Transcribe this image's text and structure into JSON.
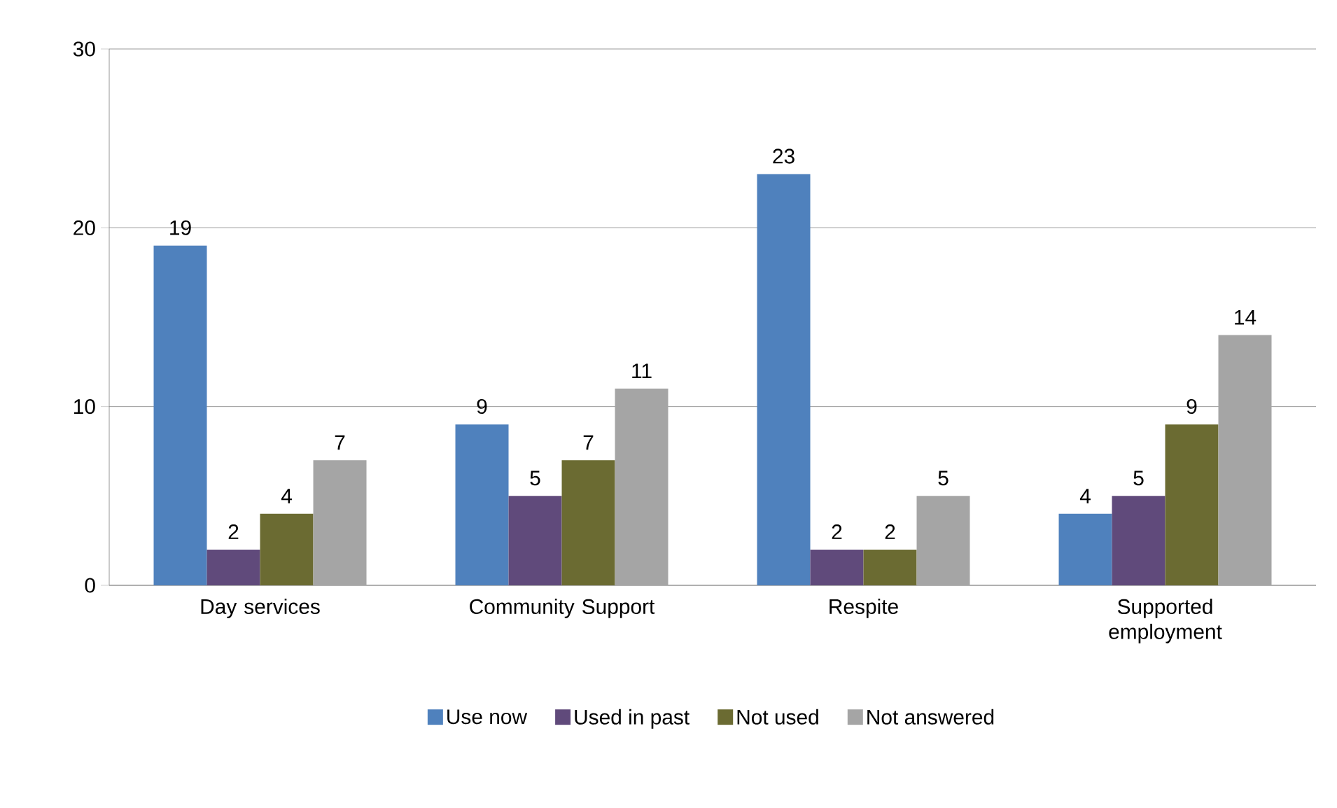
{
  "chart_data": {
    "type": "bar",
    "categories": [
      "Day services",
      "Community Support",
      "Respite",
      "Supported employment"
    ],
    "series": [
      {
        "name": "Use now",
        "color": "#4f81bd",
        "values": [
          19,
          9,
          23,
          4
        ]
      },
      {
        "name": "Used in past",
        "color": "#604a7b",
        "values": [
          2,
          5,
          2,
          5
        ]
      },
      {
        "name": "Not used",
        "color": "#6b6b32",
        "values": [
          4,
          7,
          2,
          9
        ]
      },
      {
        "name": "Not answered",
        "color": "#a5a5a5",
        "values": [
          7,
          11,
          5,
          14
        ]
      }
    ],
    "ylim": [
      0,
      30
    ],
    "yticks": [
      0,
      10,
      20,
      30
    ],
    "grid": "y",
    "legend": "bottom",
    "data_labels": true
  }
}
